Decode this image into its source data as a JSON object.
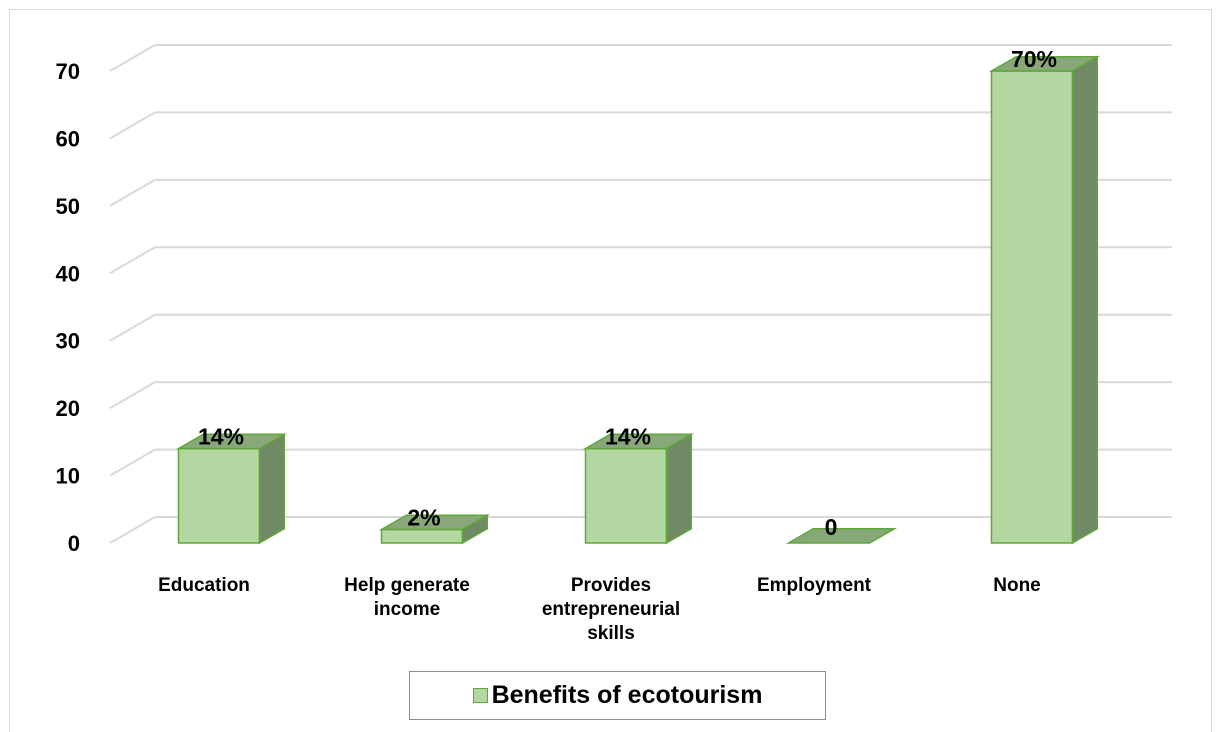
{
  "chart_data": {
    "type": "bar",
    "style": "3d-column",
    "categories": [
      "Education",
      "Help generate income",
      "Provides entrepreneurial skills",
      "Employment",
      "None"
    ],
    "category_lines": [
      [
        "Education"
      ],
      [
        "Help generate",
        "income"
      ],
      [
        "Provides",
        "entrepreneurial",
        "skills"
      ],
      [
        "Employment"
      ],
      [
        "None"
      ]
    ],
    "series": [
      {
        "name": "Benefits of ecotourism",
        "values": [
          14,
          2,
          14,
          0,
          70
        ],
        "labels": [
          "14%",
          "2%",
          "14%",
          "0",
          "70%"
        ]
      }
    ],
    "yticks": [
      "0",
      "10",
      "20",
      "30",
      "40",
      "50",
      "60",
      "70"
    ],
    "ylim": [
      0,
      70
    ],
    "grid": true,
    "legend": "bottom",
    "colors": {
      "front": "#b3d7a1",
      "side": "#6f8a64",
      "top": "#88a87a",
      "edge": "#5ea83a",
      "grid": "#d9d9d9"
    }
  }
}
